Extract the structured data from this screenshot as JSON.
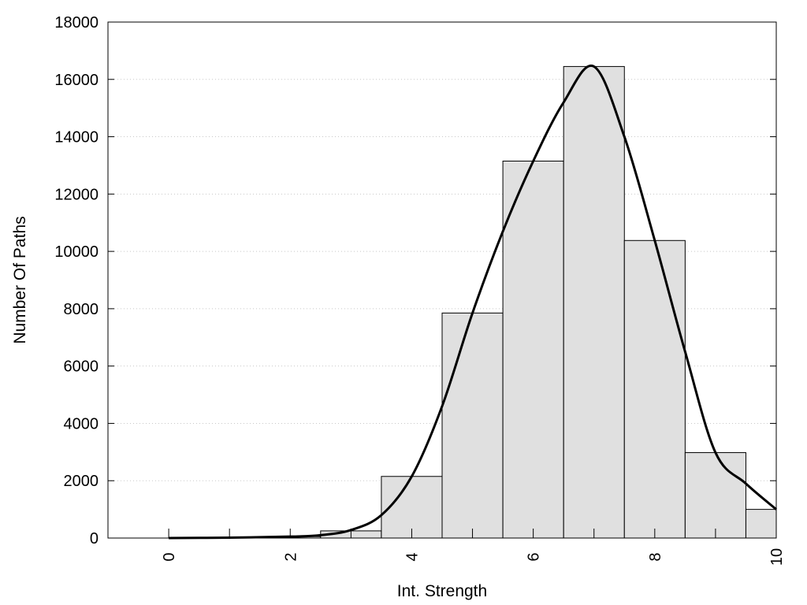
{
  "chart_data": {
    "type": "bar",
    "title": "",
    "xlabel": "Int. Strength",
    "ylabel": "Number Of Paths",
    "xlim": [
      -1,
      10
    ],
    "ylim": [
      0,
      18000
    ],
    "x_ticks": [
      0,
      2,
      4,
      6,
      8,
      10
    ],
    "y_ticks": [
      0,
      2000,
      4000,
      6000,
      8000,
      10000,
      12000,
      14000,
      16000,
      18000
    ],
    "grid": "horizontal dotted",
    "legend": "none",
    "colors": {
      "bar_fill": "#e0e0e0",
      "bar_stroke": "#000000",
      "curve": "#000000",
      "grid": "#c8c8c8"
    },
    "series": [
      {
        "type": "bar",
        "bin_width": 1,
        "bins": [
          {
            "x": 0,
            "value": 0
          },
          {
            "x": 1,
            "value": 0
          },
          {
            "x": 2,
            "value": 50
          },
          {
            "x": 3,
            "value": 250
          },
          {
            "x": 4,
            "value": 2150
          },
          {
            "x": 5,
            "value": 7850
          },
          {
            "x": 6,
            "value": 13150
          },
          {
            "x": 7,
            "value": 16450
          },
          {
            "x": 8,
            "value": 10380
          },
          {
            "x": 9,
            "value": 2980
          },
          {
            "x": 10,
            "value": 1000
          }
        ]
      },
      {
        "type": "line",
        "smooth": true,
        "points": [
          {
            "x": 0,
            "y": 0
          },
          {
            "x": 1,
            "y": 15
          },
          {
            "x": 2,
            "y": 50
          },
          {
            "x": 2.5,
            "y": 100
          },
          {
            "x": 3,
            "y": 280
          },
          {
            "x": 3.5,
            "y": 800
          },
          {
            "x": 4,
            "y": 2150
          },
          {
            "x": 4.5,
            "y": 4600
          },
          {
            "x": 5,
            "y": 7850
          },
          {
            "x": 5.5,
            "y": 10700
          },
          {
            "x": 6,
            "y": 13150
          },
          {
            "x": 6.5,
            "y": 15200
          },
          {
            "x": 7,
            "y": 16450
          },
          {
            "x": 7.5,
            "y": 14000
          },
          {
            "x": 8,
            "y": 10380
          },
          {
            "x": 8.5,
            "y": 6500
          },
          {
            "x": 9,
            "y": 2980
          },
          {
            "x": 9.5,
            "y": 1900
          },
          {
            "x": 10,
            "y": 1000
          }
        ]
      }
    ]
  }
}
